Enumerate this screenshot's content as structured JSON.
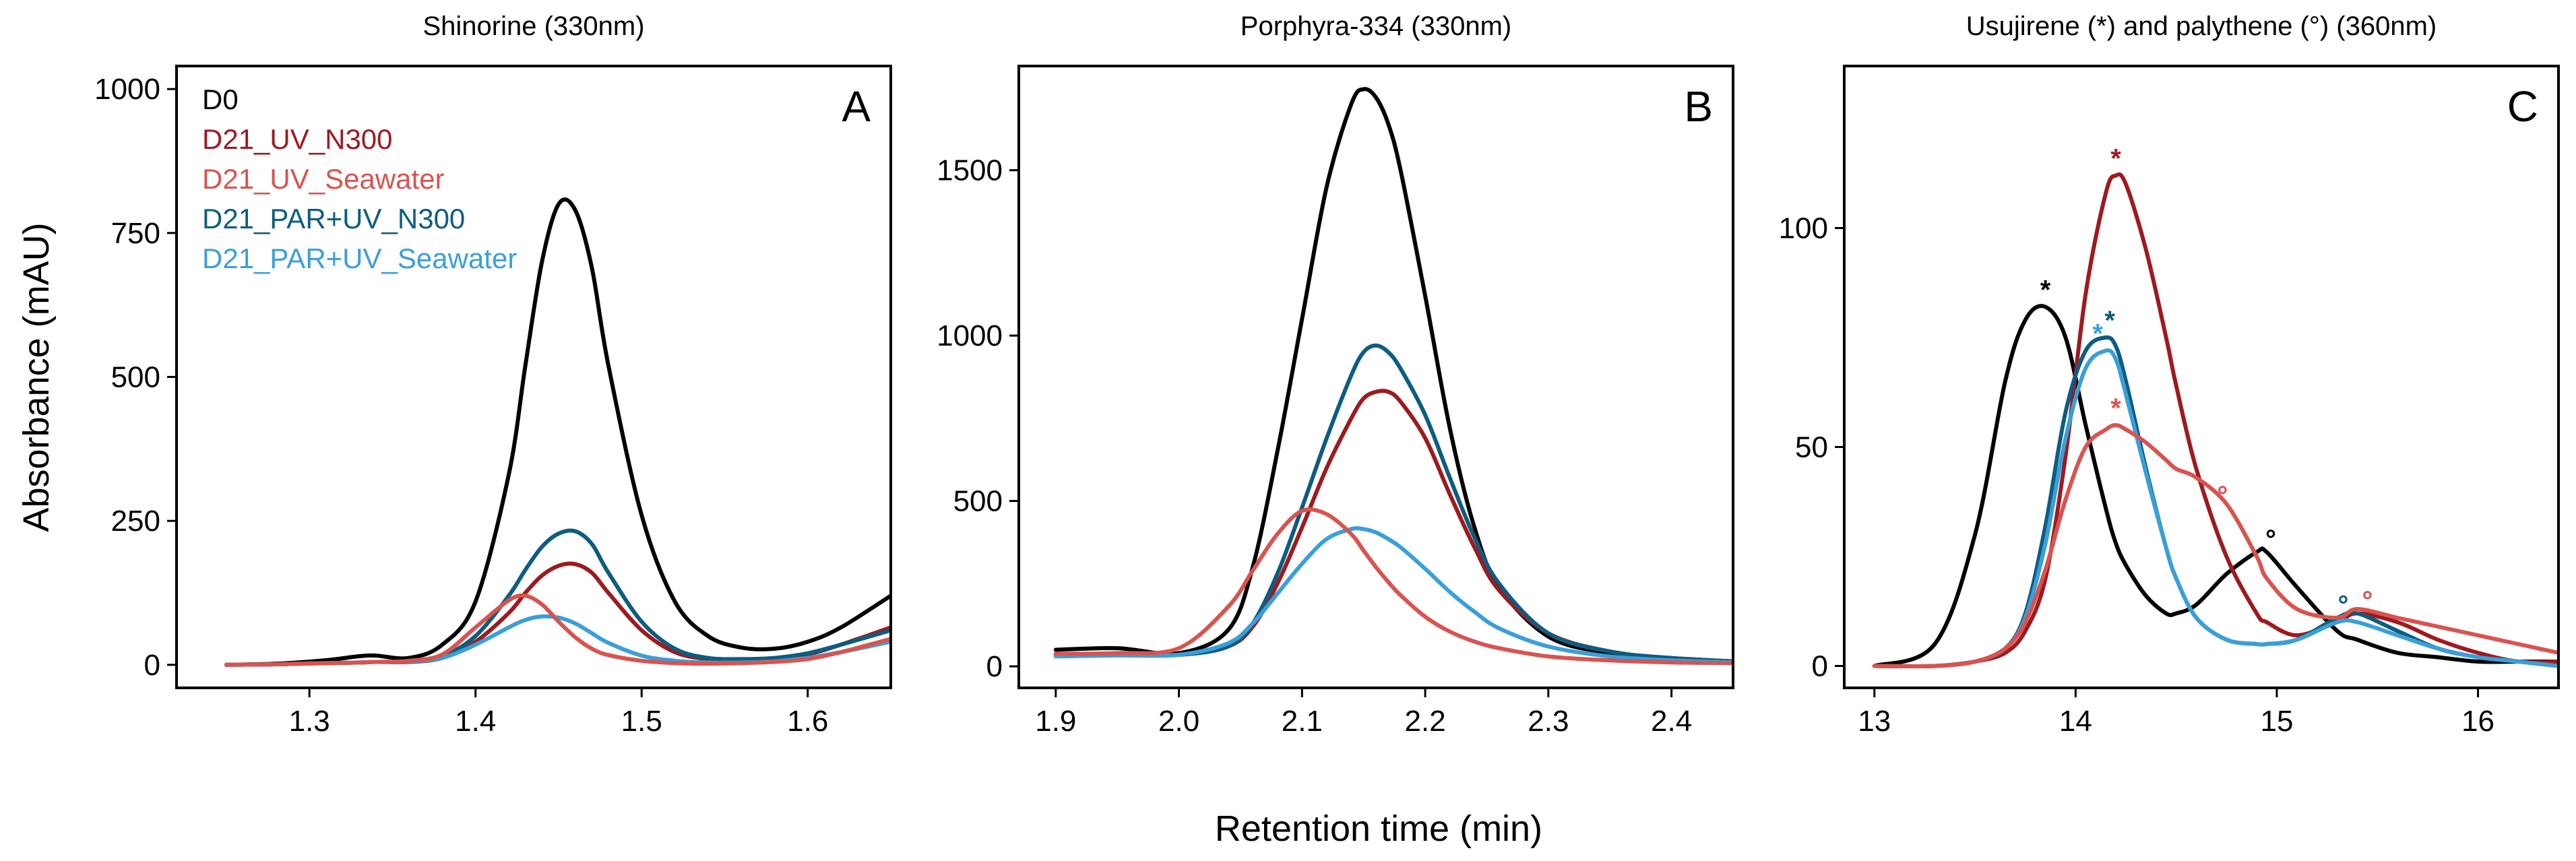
{
  "figure": {
    "xlabel": "Retention time (min)",
    "ylabel": "Absorbance (mAU)"
  },
  "colors": {
    "D0": "#000000",
    "D21_UV_N300": "#9e1a1f",
    "D21_UV_Seawater": "#d9534f",
    "D21_PAR+UV_N300": "#0d5d80",
    "D21_PAR+UV_Seawater": "#3b9fd8"
  },
  "legend": [
    "D0",
    "D21_UV_N300",
    "D21_UV_Seawater",
    "D21_PAR+UV_N300",
    "D21_PAR+UV_Seawater"
  ],
  "chart_data": [
    {
      "type": "line",
      "panel": "A",
      "title": "Shinorine (330nm)",
      "xlim": [
        1.22,
        1.65
      ],
      "ylim": [
        -40,
        1040
      ],
      "xticks": [
        1.3,
        1.4,
        1.5,
        1.6
      ],
      "xtick_labels": [
        "1.3",
        "1.4",
        "1.5",
        "1.6"
      ],
      "yticks": [
        0,
        250,
        500,
        750,
        1000
      ],
      "ytick_labels": [
        "0",
        "250",
        "500",
        "750",
        "1000"
      ],
      "x": [
        1.25,
        1.28,
        1.31,
        1.33,
        1.34,
        1.36,
        1.38,
        1.4,
        1.42,
        1.43,
        1.44,
        1.45,
        1.46,
        1.47,
        1.48,
        1.5,
        1.52,
        1.54,
        1.56,
        1.58,
        1.6,
        1.62,
        1.65
      ],
      "series": [
        {
          "name": "D0",
          "values": [
            0,
            2,
            8,
            15,
            16,
            12,
            35,
            110,
            330,
            520,
            700,
            800,
            790,
            690,
            520,
            260,
            110,
            50,
            30,
            28,
            40,
            65,
            120
          ]
        },
        {
          "name": "D21_UV_N300",
          "values": [
            0,
            1,
            3,
            4,
            5,
            5,
            12,
            40,
            90,
            125,
            155,
            172,
            175,
            160,
            125,
            60,
            22,
            10,
            8,
            10,
            18,
            35,
            65
          ]
        },
        {
          "name": "D21_UV_Seawater",
          "values": [
            0,
            1,
            3,
            4,
            5,
            7,
            18,
            65,
            112,
            120,
            105,
            75,
            48,
            28,
            17,
            7,
            3,
            2,
            3,
            5,
            10,
            22,
            45
          ]
        },
        {
          "name": "D21_PAR+UV_N300",
          "values": [
            0,
            1,
            3,
            4,
            5,
            6,
            15,
            50,
            120,
            165,
            205,
            228,
            232,
            210,
            160,
            75,
            28,
            12,
            10,
            12,
            20,
            35,
            60
          ]
        },
        {
          "name": "D21_PAR+UV_Seawater",
          "values": [
            0,
            1,
            3,
            4,
            5,
            6,
            12,
            35,
            65,
            78,
            84,
            82,
            72,
            55,
            38,
            16,
            7,
            4,
            4,
            6,
            12,
            22,
            40
          ]
        }
      ],
      "markers": []
    },
    {
      "type": "line",
      "panel": "B",
      "title": "Porphyra-334 (330nm)",
      "xlim": [
        1.87,
        2.45
      ],
      "ylim": [
        -65,
        1815
      ],
      "xticks": [
        1.9,
        2.0,
        2.1,
        2.2,
        2.3,
        2.4
      ],
      "xtick_labels": [
        "1.9",
        "2.0",
        "2.1",
        "2.2",
        "2.3",
        "2.4"
      ],
      "yticks": [
        0,
        500,
        1000,
        1500
      ],
      "ytick_labels": [
        "0",
        "500",
        "1000",
        "1500"
      ],
      "x": [
        1.9,
        1.95,
        2.0,
        2.04,
        2.06,
        2.08,
        2.1,
        2.12,
        2.14,
        2.15,
        2.16,
        2.17,
        2.18,
        2.2,
        2.22,
        2.24,
        2.26,
        2.3,
        2.35,
        2.4,
        2.45
      ],
      "series": [
        {
          "name": "D0",
          "values": [
            50,
            55,
            40,
            110,
            300,
            650,
            1050,
            1450,
            1700,
            1745,
            1720,
            1640,
            1500,
            1120,
            720,
            420,
            240,
            90,
            40,
            25,
            15
          ]
        },
        {
          "name": "D21_UV_N300",
          "values": [
            35,
            38,
            35,
            60,
            120,
            250,
            420,
            600,
            750,
            810,
            830,
            830,
            800,
            690,
            520,
            360,
            230,
            100,
            45,
            25,
            15
          ]
        },
        {
          "name": "D21_UV_Seawater",
          "values": [
            38,
            40,
            55,
            180,
            290,
            400,
            470,
            460,
            400,
            350,
            300,
            255,
            215,
            150,
            105,
            75,
            55,
            30,
            18,
            12,
            10
          ]
        },
        {
          "name": "D21_PAR+UV_N300",
          "values": [
            35,
            38,
            35,
            60,
            130,
            280,
            480,
            690,
            880,
            950,
            970,
            950,
            900,
            760,
            570,
            390,
            250,
            100,
            45,
            25,
            15
          ]
        },
        {
          "name": "D21_PAR+UV_Seawater",
          "values": [
            30,
            33,
            35,
            70,
            130,
            220,
            310,
            385,
            415,
            415,
            405,
            385,
            360,
            295,
            225,
            165,
            115,
            60,
            30,
            18,
            12
          ]
        }
      ],
      "markers": []
    },
    {
      "type": "line",
      "panel": "C",
      "title": "Usujirene (*) and palythene (°) (360nm)",
      "xlim": [
        12.85,
        16.4
      ],
      "ylim": [
        -5,
        137
      ],
      "xticks": [
        13,
        14,
        15,
        16
      ],
      "xtick_labels": [
        "13",
        "14",
        "15",
        "16"
      ],
      "yticks": [
        0,
        50,
        100
      ],
      "ytick_labels": [
        "0",
        "50",
        "100"
      ],
      "x": [
        13.0,
        13.3,
        13.5,
        13.65,
        13.75,
        13.85,
        13.95,
        14.05,
        14.15,
        14.2,
        14.25,
        14.35,
        14.45,
        14.5,
        14.6,
        14.75,
        14.9,
        14.95,
        15.1,
        15.3,
        15.4,
        15.6,
        15.8,
        16.0,
        16.2,
        16.4
      ],
      "series": [
        {
          "name": "D0",
          "values": [
            0,
            5,
            30,
            65,
            79,
            82,
            75,
            55,
            36,
            28,
            23,
            16,
            12,
            12,
            14,
            21,
            26,
            26,
            18,
            8,
            6,
            3,
            2,
            1,
            1,
            1
          ]
        },
        {
          "name": "D21_UV_N300",
          "values": [
            0,
            0,
            1,
            3,
            8,
            20,
            48,
            85,
            108,
            112,
            110,
            95,
            75,
            64,
            45,
            25,
            12,
            10,
            7,
            10,
            12,
            10,
            6,
            3,
            1,
            1
          ]
        },
        {
          "name": "D21_UV_Seawater",
          "values": [
            0,
            0,
            1,
            4,
            10,
            22,
            38,
            50,
            54,
            55,
            54,
            51,
            47,
            45,
            43,
            37,
            25,
            20,
            13,
            11,
            13,
            11,
            9,
            7,
            5,
            3
          ]
        },
        {
          "name": "D21_PAR+UV_N300",
          "values": [
            0,
            0,
            1,
            4,
            12,
            32,
            58,
            72,
            75,
            73,
            65,
            45,
            27,
            20,
            11,
            6,
            5,
            5,
            6,
            11,
            12,
            8,
            4,
            2,
            1,
            0
          ]
        },
        {
          "name": "D21_PAR+UV_Seawater",
          "values": [
            0,
            0,
            1,
            4,
            11,
            28,
            52,
            68,
            72,
            70,
            62,
            44,
            27,
            20,
            11,
            6,
            5,
            5,
            6,
            10,
            10,
            7,
            4,
            2,
            1,
            0
          ]
        }
      ],
      "markers": [
        {
          "series": "D0",
          "symbol": "*",
          "x": 13.85,
          "y": 86
        },
        {
          "series": "D21_UV_N300",
          "symbol": "*",
          "x": 14.2,
          "y": 116
        },
        {
          "series": "D21_PAR+UV_N300",
          "symbol": "*",
          "x": 14.17,
          "y": 79
        },
        {
          "series": "D21_PAR+UV_Seawater",
          "symbol": "*",
          "x": 14.11,
          "y": 76
        },
        {
          "series": "D21_UV_Seawater",
          "symbol": "*",
          "x": 14.2,
          "y": 59
        },
        {
          "series": "D21_UV_Seawater",
          "symbol": "°",
          "x": 14.73,
          "y": 39
        },
        {
          "series": "D0",
          "symbol": "°",
          "x": 14.97,
          "y": 29
        },
        {
          "series": "D21_PAR+UV_N300",
          "symbol": "°",
          "x": 15.33,
          "y": 14
        },
        {
          "series": "D21_UV_Seawater",
          "symbol": "°",
          "x": 15.45,
          "y": 15
        }
      ]
    }
  ]
}
